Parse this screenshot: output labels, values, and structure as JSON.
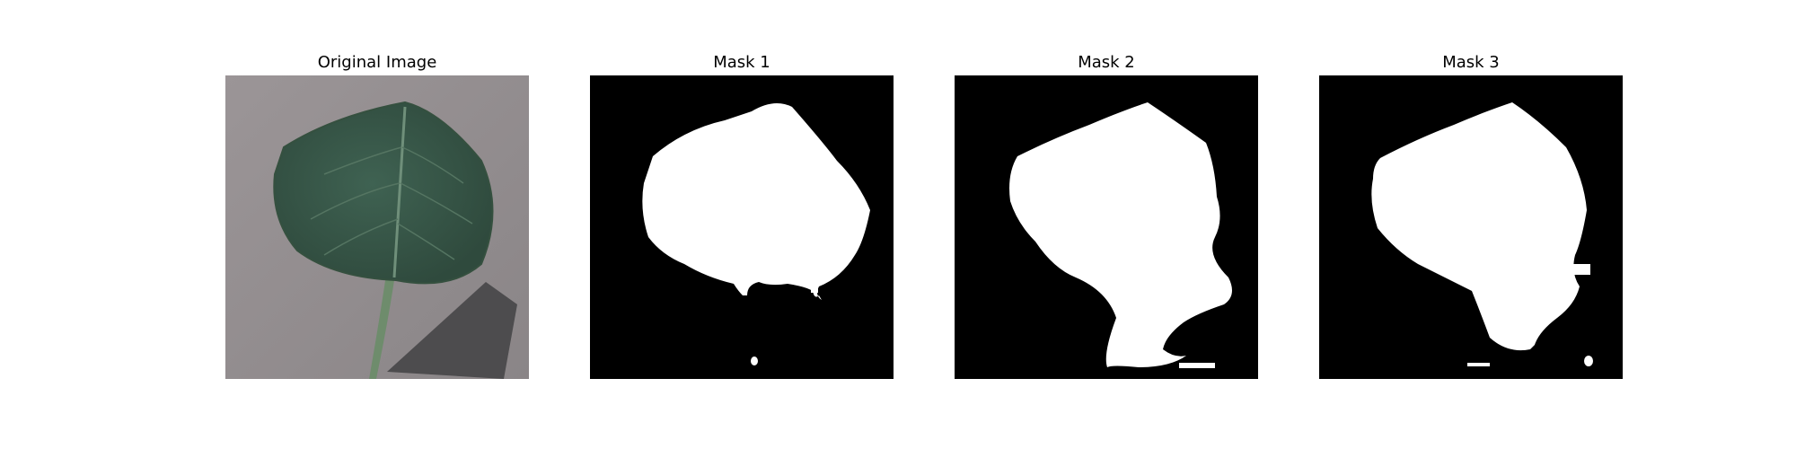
{
  "panels": [
    {
      "title": "Original Image"
    },
    {
      "title": "Mask 1"
    },
    {
      "title": "Mask 2"
    },
    {
      "title": "Mask 3"
    }
  ],
  "colors": {
    "background_surface": "#8f8a8d",
    "leaf": "#3a5a4a",
    "leaf_vein": "#6f8f7a",
    "stem": "#6e8c6c",
    "shadow": "#4a4a4a",
    "mask_fg": "#ffffff",
    "mask_bg": "#000000"
  }
}
